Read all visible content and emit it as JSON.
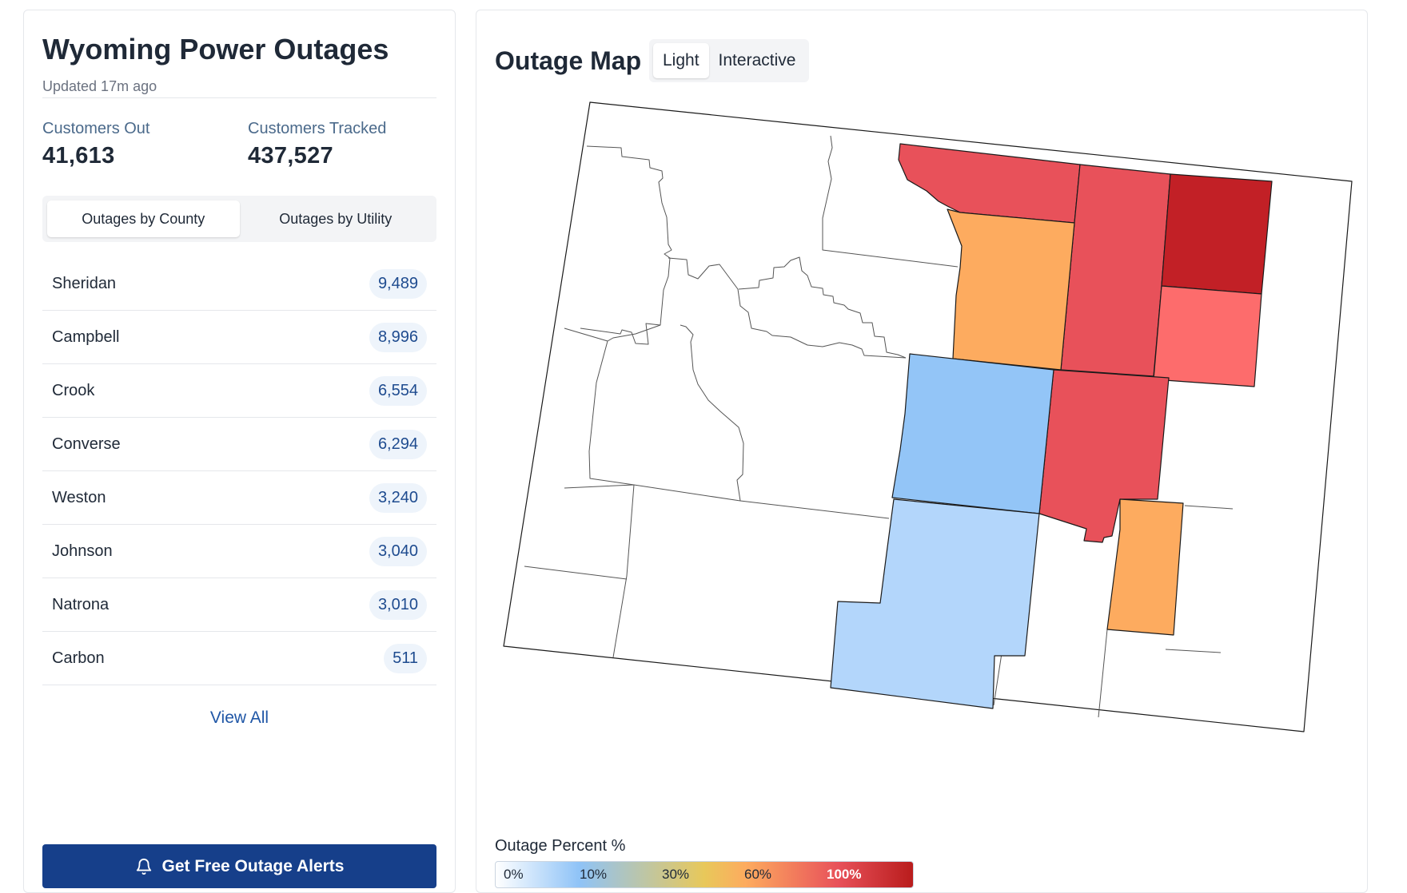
{
  "app": {
    "title": "Wyoming Power Outages",
    "updated": "Updated 17m ago"
  },
  "stats": {
    "customers_out_label": "Customers Out",
    "customers_out_value": "41,613",
    "customers_tracked_label": "Customers Tracked",
    "customers_tracked_value": "437,527"
  },
  "tabs": [
    {
      "label": "Outages by County",
      "active": true
    },
    {
      "label": "Outages by Utility",
      "active": false
    }
  ],
  "counties": [
    {
      "name": "Sheridan",
      "count": "9,489"
    },
    {
      "name": "Campbell",
      "count": "8,996"
    },
    {
      "name": "Crook",
      "count": "6,554"
    },
    {
      "name": "Converse",
      "count": "6,294"
    },
    {
      "name": "Weston",
      "count": "3,240"
    },
    {
      "name": "Johnson",
      "count": "3,040"
    },
    {
      "name": "Natrona",
      "count": "3,010"
    },
    {
      "name": "Carbon",
      "count": "511"
    }
  ],
  "view_all": "View All",
  "alert_button": {
    "label": "Get Free Outage Alerts",
    "icon": "bell-icon"
  },
  "map": {
    "title": "Outage Map",
    "style_options": [
      {
        "label": "Light",
        "active": true
      },
      {
        "label": "Interactive",
        "active": false
      }
    ],
    "colors": {
      "none": "#ffffff",
      "blue_dark": "#93c5f7",
      "blue_light": "#b3d6fb",
      "orange": "#fdab5f",
      "red": "#e8515a",
      "red_dark": "#c22026",
      "salmon": "#fd6c6c"
    }
  },
  "legend": {
    "title": "Outage Percent %",
    "ticks": [
      "0%",
      "10%",
      "30%",
      "60%",
      "100%"
    ]
  },
  "theme": {
    "primary": "#163f8a",
    "link": "#1f56a6",
    "badge_bg": "#eef4fb"
  }
}
